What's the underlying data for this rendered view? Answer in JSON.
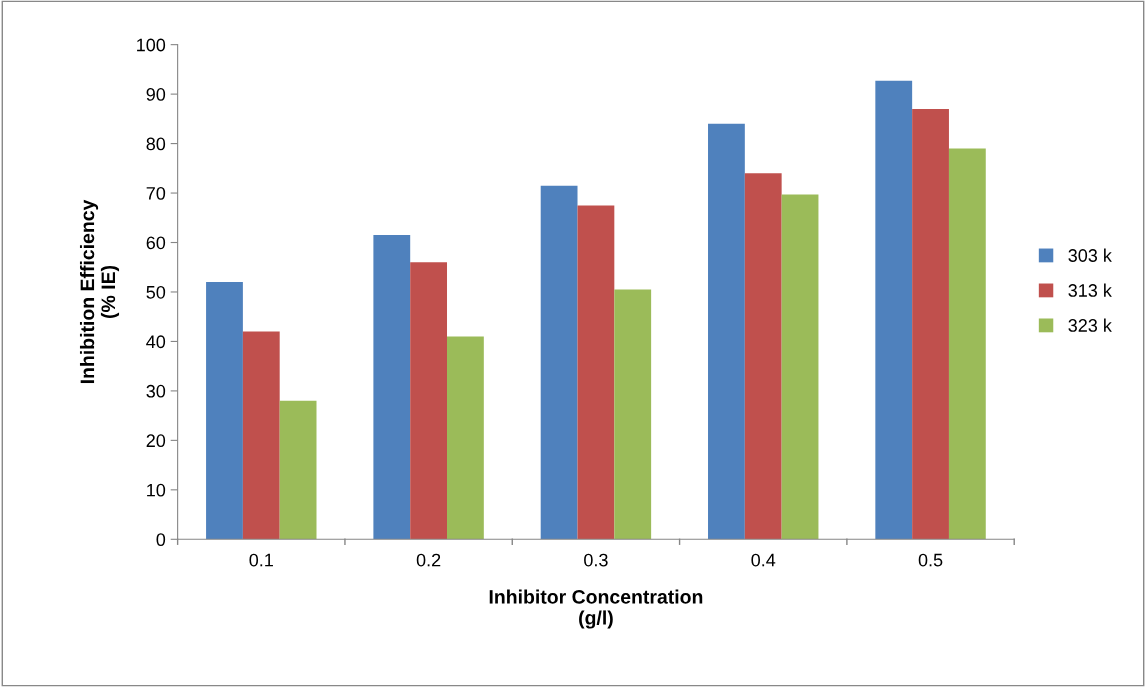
{
  "chart_data": {
    "type": "bar",
    "xlabel": "Inhibitor Concentration\n(g/l)",
    "ylabel": "Inhibition Efficiency\n(% IE)",
    "categories": [
      "0.1",
      "0.2",
      "0.3",
      "0.4",
      "0.5"
    ],
    "series": [
      {
        "name": "303 k",
        "color": "#4f81bd",
        "values": [
          52,
          61.5,
          71.5,
          84,
          92.7
        ]
      },
      {
        "name": "313 k",
        "color": "#c0504d",
        "values": [
          42,
          56,
          67.5,
          74,
          87
        ]
      },
      {
        "name": "323 k",
        "color": "#9bbb59",
        "values": [
          28,
          41,
          50.5,
          69.7,
          79
        ]
      }
    ],
    "ylim": [
      0,
      100
    ],
    "yticks": [
      0,
      10,
      20,
      30,
      40,
      50,
      60,
      70,
      80,
      90,
      100
    ],
    "grid": false,
    "legend": "right"
  }
}
